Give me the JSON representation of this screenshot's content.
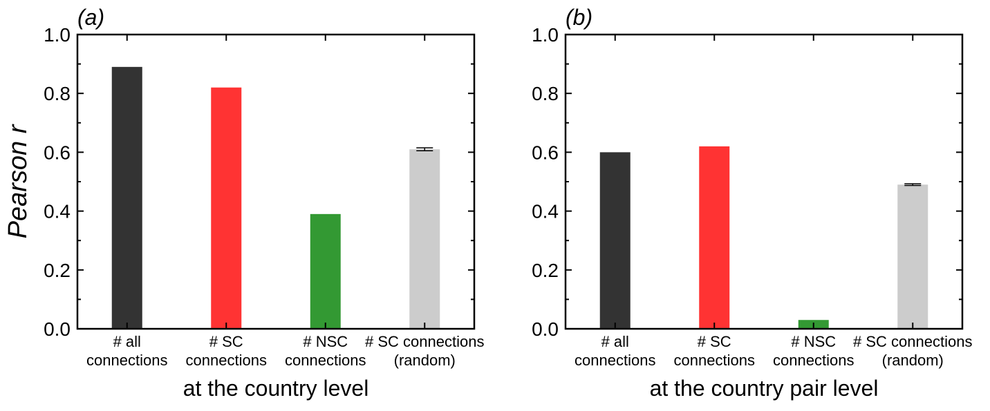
{
  "chart_data": [
    {
      "type": "bar",
      "panel_label": "(a)",
      "xlabel": "at the country level",
      "ylabel": "Pearson r",
      "ylim": [
        0,
        1.0
      ],
      "yticks": [
        "0.0",
        "0.2",
        "0.4",
        "0.6",
        "0.8",
        "1.0"
      ],
      "categories": [
        [
          "# all",
          "connections"
        ],
        [
          "# SC",
          "connections"
        ],
        [
          "# NSC",
          "connections"
        ],
        [
          "# SC connections",
          "(random)"
        ]
      ],
      "values": [
        0.89,
        0.82,
        0.39,
        0.61
      ],
      "errors": [
        null,
        null,
        null,
        0.005
      ],
      "colors": [
        "#333333",
        "#ff3333",
        "#339933",
        "#cccccc"
      ],
      "grid": false
    },
    {
      "type": "bar",
      "panel_label": "(b)",
      "xlabel": "at the country pair level",
      "ylabel": "",
      "ylim": [
        0,
        1.0
      ],
      "yticks": [
        "0.0",
        "0.2",
        "0.4",
        "0.6",
        "0.8",
        "1.0"
      ],
      "categories": [
        [
          "# all",
          "connections"
        ],
        [
          "# SC",
          "connections"
        ],
        [
          "# NSC",
          "connections"
        ],
        [
          "# SC connections",
          "(random)"
        ]
      ],
      "values": [
        0.6,
        0.62,
        0.03,
        0.49
      ],
      "errors": [
        null,
        null,
        null,
        0.003
      ],
      "colors": [
        "#333333",
        "#ff3333",
        "#339933",
        "#cccccc"
      ],
      "grid": false
    }
  ]
}
